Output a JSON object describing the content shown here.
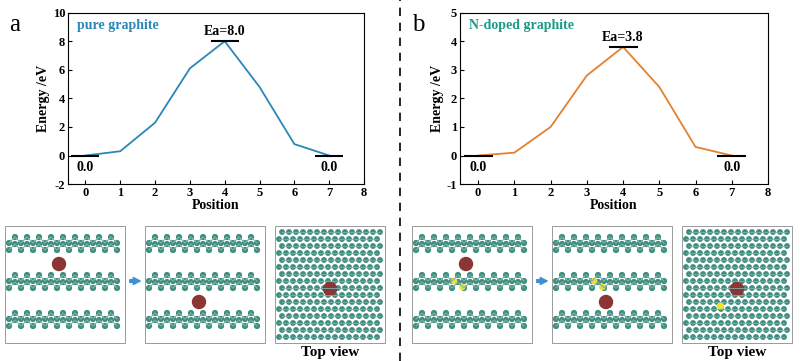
{
  "chart_data": [
    {
      "type": "line",
      "panel": "a",
      "title": "pure graphite",
      "xlabel": "Position",
      "ylabel": "Energy /eV",
      "x": [
        0,
        1,
        2,
        3,
        4,
        5,
        6,
        7
      ],
      "values": [
        0.0,
        0.3,
        2.3,
        6.1,
        8.0,
        4.8,
        0.8,
        0.0
      ],
      "color": "#2b86b8",
      "xlim": [
        -0.5,
        8
      ],
      "xticks": [
        0,
        1,
        2,
        3,
        4,
        5,
        6,
        7,
        8
      ],
      "ylim": [
        -2,
        10
      ],
      "yticks": [
        -2,
        0,
        2,
        4,
        6,
        8,
        10
      ],
      "annotations": [
        {
          "text": "0.0",
          "x": 0,
          "y": 0.0
        },
        {
          "text": "Ea=8.0",
          "x": 4,
          "y": 8.0
        },
        {
          "text": "0.0",
          "x": 7,
          "y": 0.0
        }
      ],
      "image_caption": "Top view"
    },
    {
      "type": "line",
      "panel": "b",
      "title": "N-doped graphite",
      "xlabel": "Position",
      "ylabel": "Energy /eV",
      "x": [
        0,
        1,
        2,
        3,
        4,
        5,
        6,
        7
      ],
      "values": [
        0.0,
        0.1,
        1.0,
        2.8,
        3.8,
        2.4,
        0.3,
        0.0
      ],
      "color": "#e3812f",
      "xlim": [
        -0.5,
        8
      ],
      "xticks": [
        0,
        1,
        2,
        3,
        4,
        5,
        6,
        7,
        8
      ],
      "ylim": [
        -1,
        5
      ],
      "yticks": [
        -1,
        0,
        1,
        2,
        3,
        4,
        5
      ],
      "annotations": [
        {
          "text": "0.0",
          "x": 0,
          "y": 0.0
        },
        {
          "text": "Ea=3.8",
          "x": 4,
          "y": 3.8
        },
        {
          "text": "0.0",
          "x": 7,
          "y": 0.0
        }
      ],
      "image_caption": "Top view"
    }
  ]
}
